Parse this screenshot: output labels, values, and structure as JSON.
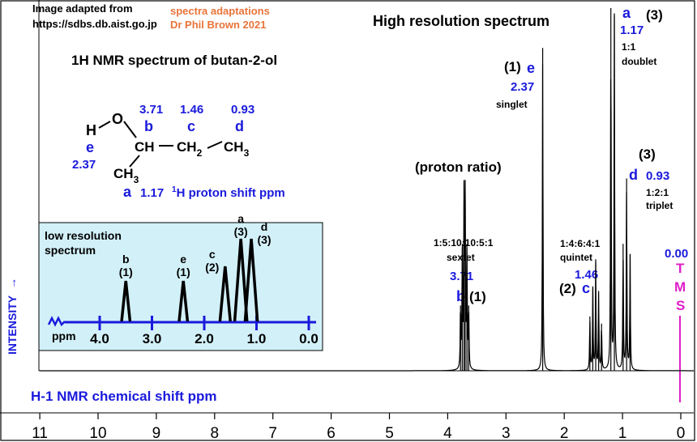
{
  "credits": {
    "line1": "Image adapted from",
    "line2": "https://sdbs.db.aist.go.jp",
    "adapt1": "spectra adaptations",
    "adapt2": "Dr Phil Brown 2021"
  },
  "title": "High resolution spectrum",
  "subtitle": "1H NMR spectrum of  butan-2-ol",
  "structure": {
    "H": "H",
    "O": "O",
    "CH": "CH",
    "CH2": "CH",
    "CH2_sub": "2",
    "CH3": "CH",
    "CH3_sub": "3",
    "CH3b": "CH",
    "CH3b_sub": "3",
    "shift_b": "3.71",
    "shift_c": "1.46",
    "shift_d": "0.93",
    "letter_b": "b",
    "letter_c": "c",
    "letter_d": "d",
    "letter_e": "e",
    "shift_e": "2.37",
    "letter_a": "a",
    "shift_a": "1.17",
    "proton_label_sup": "1",
    "proton_label": "H proton shift  ppm"
  },
  "proton_ratio": "(proton ratio)",
  "annotations": {
    "a": {
      "ratio": "(3)",
      "letter": "a",
      "shift": "1.17",
      "pattern1": "1:1",
      "pattern2": "doublet"
    },
    "e": {
      "ratio": "(1)",
      "letter": "e",
      "shift": "2.37",
      "pattern": "singlet"
    },
    "d": {
      "ratio": "(3)",
      "letter": "d",
      "shift": "0.93",
      "pattern1": "1:2:1",
      "pattern2": "triplet"
    },
    "c": {
      "ratio": "(2)",
      "letter": "c",
      "shift": "1.46",
      "pattern1": "1:4:6:4:1",
      "pattern2": "quintet"
    },
    "b": {
      "ratio": "(1)",
      "letter": "b",
      "shift": "3.71",
      "pattern1": "1:5:10:10:5:1",
      "pattern2": "sextet"
    }
  },
  "tms": {
    "shift": "0.00",
    "letters": [
      "T",
      "M",
      "S"
    ]
  },
  "intensity_label": "INTENSITY",
  "intensity_arrow": "→",
  "x_axis_title": "H-1 NMR chemical shift  ppm",
  "colors": {
    "blue": "#1a1adc",
    "orange": "#e8743a",
    "magenta": "#e01ec8",
    "inset_bg": "#d2f0f8",
    "inset_axis": "#1a1adc"
  },
  "inset": {
    "title1": "low resolution",
    "title2": "spectrum",
    "axis_label": "ppm",
    "ticks": [
      "4.0",
      "3.0",
      "2.0",
      "1.0",
      "0.0"
    ],
    "tick_values": [
      4,
      3,
      2,
      1,
      0
    ],
    "peaks": [
      {
        "letter": "b",
        "ratio": "(1)",
        "shift": 3.5,
        "height": 1
      },
      {
        "letter": "e",
        "ratio": "(1)",
        "shift": 2.4,
        "height": 1
      },
      {
        "letter": "c",
        "ratio": "(2)",
        "shift": 1.6,
        "height": 2
      },
      {
        "letter": "a",
        "ratio": "(3)",
        "shift": 1.3,
        "height": 3
      },
      {
        "letter": "d",
        "ratio": "(3)",
        "shift": 1.1,
        "height": 3
      }
    ]
  },
  "chart_data": {
    "type": "line",
    "title": "High resolution spectrum",
    "xlabel": "H-1 NMR chemical shift  ppm",
    "ylabel": "INTENSITY",
    "xlim": [
      11,
      0
    ],
    "x_ticks": [
      11,
      10,
      9,
      8,
      7,
      6,
      5,
      4,
      3,
      2,
      1,
      0
    ],
    "x_tick_labels": [
      "11",
      "10",
      "9",
      "8",
      "7",
      "6",
      "5",
      "4",
      "3",
      "2",
      "1",
      "0"
    ],
    "peaks": [
      {
        "group": "b",
        "shift": 3.71,
        "multiplicity": "sextet",
        "lines": [
          3.78,
          3.75,
          3.72,
          3.7,
          3.67,
          3.64
        ],
        "heights": [
          0.18,
          0.34,
          0.47,
          0.47,
          0.34,
          0.18
        ]
      },
      {
        "group": "e",
        "shift": 2.37,
        "multiplicity": "singlet",
        "lines": [
          2.37
        ],
        "heights": [
          0.89
        ]
      },
      {
        "group": "c",
        "shift": 1.46,
        "multiplicity": "quintet",
        "lines": [
          1.56,
          1.51,
          1.46,
          1.41,
          1.36
        ],
        "heights": [
          0.15,
          0.23,
          0.3,
          0.22,
          0.13
        ]
      },
      {
        "group": "a",
        "shift": 1.17,
        "multiplicity": "doublet",
        "lines": [
          1.2,
          1.14
        ],
        "heights": [
          1.0,
          0.98
        ]
      },
      {
        "group": "d",
        "shift": 0.93,
        "multiplicity": "triplet",
        "lines": [
          0.99,
          0.93,
          0.87
        ],
        "heights": [
          0.35,
          0.53,
          0.32
        ]
      }
    ],
    "reference": {
      "label": "TMS",
      "shift": 0.0
    }
  }
}
